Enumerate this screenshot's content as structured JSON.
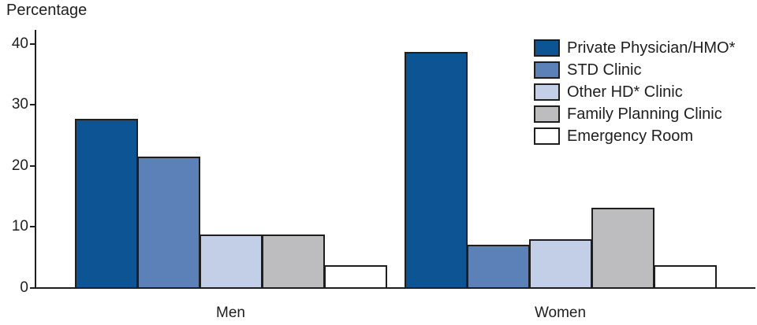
{
  "chart_data": {
    "type": "bar",
    "title": "Percentage",
    "ylabel": "Percentage",
    "xlabel": "",
    "categories": [
      "Men",
      "Women"
    ],
    "series": [
      {
        "name": "Private Physician/HMO*",
        "color": "#0D5494",
        "values": [
          27.6,
          38.6
        ]
      },
      {
        "name": "STD Clinic",
        "color": "#5B81B8",
        "values": [
          21.4,
          7.0
        ]
      },
      {
        "name": "Other HD* Clinic",
        "color": "#C3CEE7",
        "values": [
          8.7,
          7.9
        ]
      },
      {
        "name": "Family Planning Clinic",
        "color": "#BDBDBF",
        "values": [
          8.7,
          13.0
        ]
      },
      {
        "name": "Emergency Room",
        "color": "#FFFFFF",
        "values": [
          3.6,
          3.6
        ]
      }
    ],
    "ylim": [
      0,
      40
    ],
    "yticks": [
      0,
      10,
      20,
      30,
      40
    ],
    "grid": false,
    "legend_position": "top-right",
    "axis_color": "#1e1e1e"
  }
}
